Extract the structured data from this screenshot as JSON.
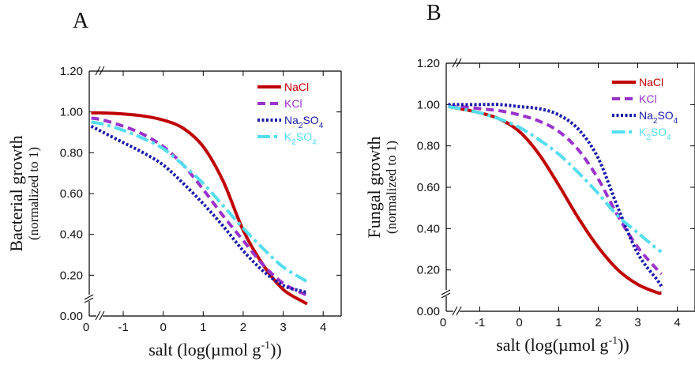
{
  "chart_data": [
    {
      "type": "line",
      "panel_label": "A",
      "xlabel": {
        "text": "salt (log(µmol g",
        "sup": "-1",
        "tail": "))"
      },
      "ylabel": "Bacterial growth",
      "ylabel_sub": "(normalized to 1)",
      "xticks": [
        -1,
        0,
        1,
        2,
        3,
        4
      ],
      "xtick_labels": [
        "-1",
        "0",
        "1",
        "2",
        "3",
        "4"
      ],
      "x_origin_label": "0",
      "yticks": [
        0.2,
        0.4,
        0.6,
        0.8,
        1.0,
        1.2
      ],
      "ytick_labels": [
        "0.20",
        "0.40",
        "0.60",
        "0.80",
        "1.00",
        "1.20"
      ],
      "y_origin_label": "0.00",
      "xlim": [
        -1.85,
        4.45
      ],
      "ylim": [
        0,
        1.2
      ],
      "axis_break": true,
      "grid": false,
      "legend_position": "top-right",
      "series": [
        {
          "name": "NaCl",
          "sub": "",
          "name_tail": "",
          "sub2": "",
          "color": "#c00000",
          "style": "solid",
          "x": [
            -1.8,
            -1.5,
            -1,
            -0.5,
            0,
            0.5,
            1,
            1.5,
            2,
            2.5,
            3,
            3.5,
            3.6
          ],
          "y": [
            0.995,
            0.995,
            0.99,
            0.98,
            0.96,
            0.92,
            0.83,
            0.66,
            0.42,
            0.25,
            0.13,
            0.07,
            0.06
          ]
        },
        {
          "name": "KCl",
          "sub": "",
          "name_tail": "",
          "sub2": "",
          "color": "#9933cc",
          "style": "dash",
          "x": [
            -1.8,
            -1.5,
            -1,
            -0.5,
            0,
            0.5,
            1,
            1.5,
            2,
            2.5,
            3,
            3.5,
            3.6
          ],
          "y": [
            0.97,
            0.96,
            0.93,
            0.89,
            0.83,
            0.74,
            0.62,
            0.49,
            0.37,
            0.25,
            0.16,
            0.11,
            0.1
          ]
        },
        {
          "name": "Na",
          "sub": "2",
          "name_tail": "SO",
          "sub2": "4",
          "color": "#1a1aaa",
          "style": "dot",
          "x": [
            -1.8,
            -1.5,
            -1,
            -0.5,
            0,
            0.5,
            1,
            1.5,
            2,
            2.5,
            3,
            3.5,
            3.6
          ],
          "y": [
            0.93,
            0.9,
            0.85,
            0.8,
            0.74,
            0.65,
            0.55,
            0.44,
            0.32,
            0.22,
            0.15,
            0.12,
            0.12
          ]
        },
        {
          "name": "K",
          "sub": "2",
          "name_tail": "SO",
          "sub2": "4",
          "color": "#55ddee",
          "style": "dashdot",
          "x": [
            -1.8,
            -1.5,
            -1,
            -0.5,
            0,
            0.5,
            1,
            1.5,
            2,
            2.5,
            3,
            3.5,
            3.6
          ],
          "y": [
            0.95,
            0.94,
            0.91,
            0.87,
            0.82,
            0.74,
            0.65,
            0.54,
            0.43,
            0.33,
            0.24,
            0.18,
            0.17
          ]
        }
      ]
    },
    {
      "type": "line",
      "panel_label": "B",
      "xlabel": {
        "text": "salt (log(µmol g",
        "sup": "-1",
        "tail": "))"
      },
      "ylabel": "Fungal growth",
      "ylabel_sub": "(normalized to 1)",
      "xticks": [
        -1,
        0,
        1,
        2,
        3,
        4
      ],
      "xtick_labels": [
        "-1",
        "0",
        "1",
        "2",
        "3",
        "4"
      ],
      "x_origin_label": "0",
      "yticks": [
        0.2,
        0.4,
        0.6,
        0.8,
        1.0,
        1.2
      ],
      "ytick_labels": [
        "0.20",
        "0.40",
        "0.60",
        "0.80",
        "1.00",
        "1.20"
      ],
      "y_origin_label": "0.00",
      "xlim": [
        -1.85,
        4.45
      ],
      "ylim": [
        0,
        1.2
      ],
      "axis_break": true,
      "grid": false,
      "legend_position": "top-right",
      "series": [
        {
          "name": "NaCl",
          "sub": "",
          "name_tail": "",
          "sub2": "",
          "color": "#c00000",
          "style": "solid",
          "x": [
            -1.8,
            -1.5,
            -1,
            -0.5,
            0,
            0.5,
            1,
            1.5,
            2,
            2.5,
            3,
            3.5,
            3.6
          ],
          "y": [
            0.99,
            0.98,
            0.96,
            0.93,
            0.87,
            0.76,
            0.61,
            0.45,
            0.31,
            0.2,
            0.13,
            0.09,
            0.09
          ]
        },
        {
          "name": "KCl",
          "sub": "",
          "name_tail": "",
          "sub2": "",
          "color": "#9933cc",
          "style": "dash",
          "x": [
            -1.8,
            -1.5,
            -1,
            -0.5,
            0,
            0.5,
            1,
            1.5,
            2,
            2.5,
            3,
            3.5,
            3.6
          ],
          "y": [
            0.99,
            0.99,
            0.98,
            0.97,
            0.95,
            0.92,
            0.87,
            0.78,
            0.64,
            0.46,
            0.31,
            0.2,
            0.18
          ]
        },
        {
          "name": "Na",
          "sub": "2",
          "name_tail": "SO",
          "sub2": "4",
          "color": "#1a1aaa",
          "style": "dot",
          "x": [
            -1.8,
            -1.5,
            -1,
            -0.5,
            0,
            0.5,
            1,
            1.5,
            2,
            2.5,
            3,
            3.5,
            3.6
          ],
          "y": [
            1.0,
            1.0,
            1.0,
            1.0,
            0.99,
            0.98,
            0.95,
            0.88,
            0.74,
            0.5,
            0.28,
            0.15,
            0.12
          ]
        },
        {
          "name": "K",
          "sub": "2",
          "name_tail": "SO",
          "sub2": "4",
          "color": "#55ddee",
          "style": "dashdot",
          "x": [
            -1.8,
            -1.5,
            -1,
            -0.5,
            0,
            0.5,
            1,
            1.5,
            2,
            2.5,
            3,
            3.5,
            3.6
          ],
          "y": [
            0.99,
            0.98,
            0.96,
            0.93,
            0.89,
            0.83,
            0.76,
            0.67,
            0.57,
            0.46,
            0.38,
            0.3,
            0.29
          ]
        }
      ]
    }
  ]
}
